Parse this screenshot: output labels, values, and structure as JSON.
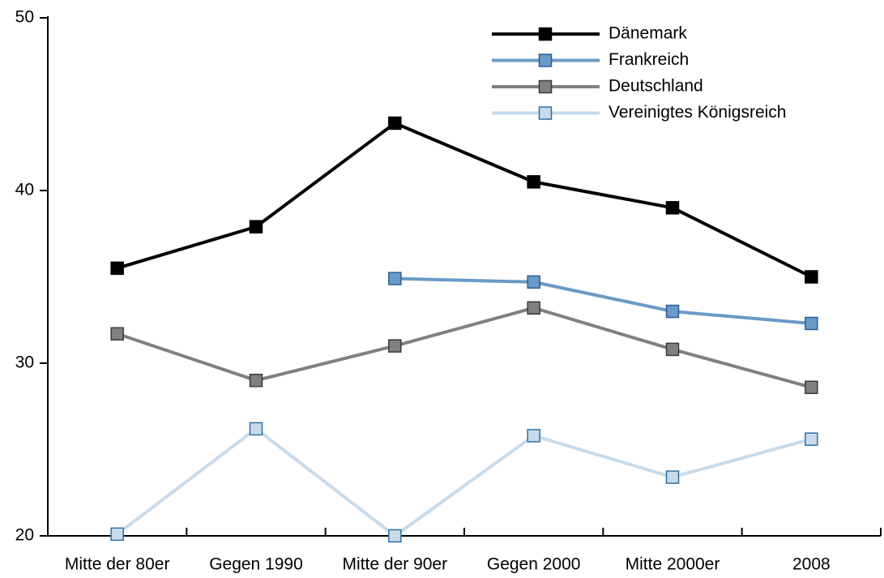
{
  "chart_data": {
    "type": "line",
    "categories": [
      "Mitte der 80er",
      "Gegen 1990",
      "Mitte der 90er",
      "Gegen 2000",
      "Mitte 2000er",
      "2008"
    ],
    "series": [
      {
        "name": "Dänemark",
        "color": "#000000",
        "edgecolor": "#000000",
        "values": [
          35.5,
          37.9,
          43.9,
          40.5,
          39.0,
          35.0
        ]
      },
      {
        "name": "Frankreich",
        "color": "#6a9ac6",
        "edgecolor": "#2a5f93",
        "values": [
          null,
          null,
          34.9,
          34.7,
          33.0,
          32.3
        ]
      },
      {
        "name": "Deutschland",
        "color": "#808080",
        "edgecolor": "#3a3a3a",
        "values": [
          31.7,
          29.0,
          31.0,
          33.2,
          30.8,
          28.6
        ]
      },
      {
        "name": "Vereinigtes Königsreich",
        "color": "#c8dbeb",
        "edgecolor": "#2f6fa8",
        "values": [
          20.1,
          26.2,
          20.0,
          25.8,
          23.4,
          25.6
        ]
      }
    ],
    "ylim": [
      20,
      50
    ],
    "yticks": [
      20,
      30,
      40,
      50
    ],
    "grid": false,
    "legend": "upper right"
  }
}
